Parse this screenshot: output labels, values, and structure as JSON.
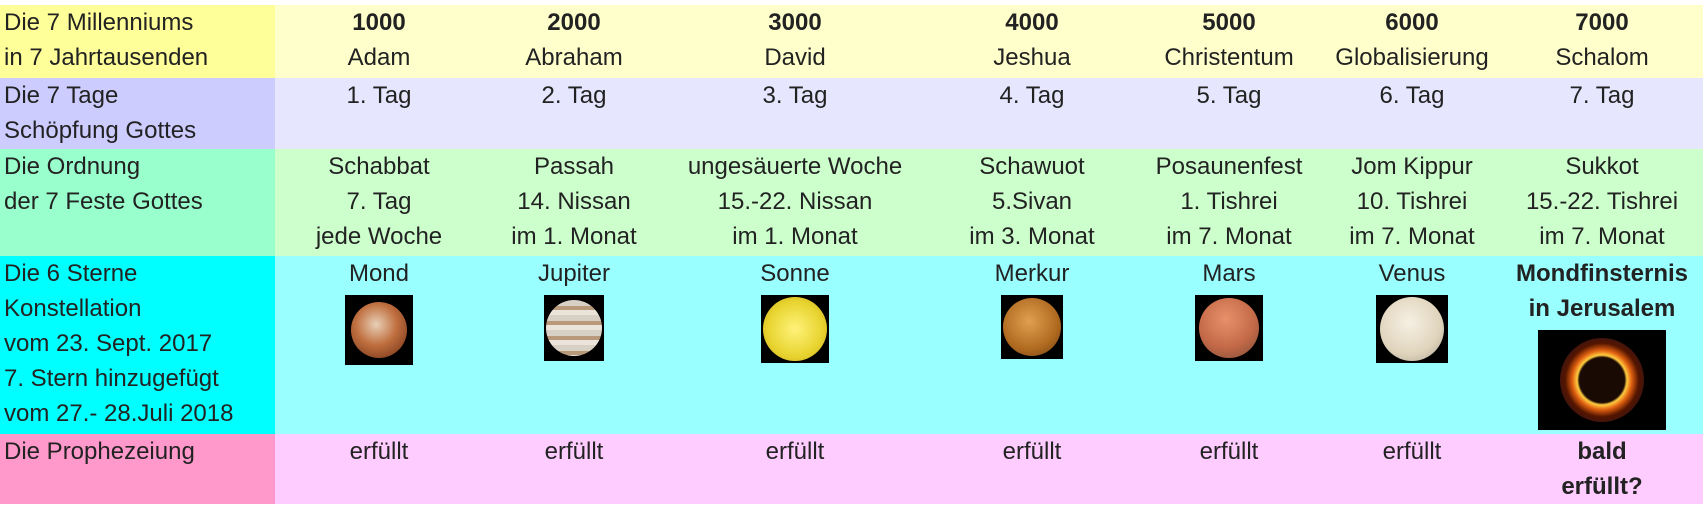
{
  "colors": {
    "row1_label": "#ffff99",
    "row1": "#ffffcc",
    "row2_label": "#ccccff",
    "row2": "#e6e6ff",
    "row3_label": "#99ffcc",
    "row3": "#ccffcc",
    "row4_label": "#00ffff",
    "row4": "#99ffff",
    "row5_label": "#ff99cc",
    "row5": "#ffccff"
  },
  "rows": [
    {
      "label": [
        "Die 7 Millenniums",
        "in 7 Jahrtausenden"
      ],
      "cells": [
        [
          "1000",
          "Adam"
        ],
        [
          "2000",
          "Abraham"
        ],
        [
          "3000",
          "David"
        ],
        [
          "4000",
          "Jeshua"
        ],
        [
          "5000",
          "Christentum"
        ],
        [
          "6000",
          "Globalisierung"
        ],
        [
          "7000",
          "Schalom"
        ]
      ]
    },
    {
      "label": [
        "Die 7 Tage",
        "Schöpfung Gottes"
      ],
      "cells": [
        "1. Tag",
        "2. Tag",
        "3. Tag",
        "4. Tag",
        "5. Tag",
        "6. Tag",
        "7. Tag"
      ]
    },
    {
      "label": [
        "Die Ordnung",
        "der 7 Feste Gottes"
      ],
      "cells": [
        [
          "Schabbat",
          "7. Tag",
          "jede Woche"
        ],
        [
          "Passah",
          "14. Nissan",
          "im 1. Monat"
        ],
        [
          "ungesäuerte Woche",
          "15.-22. Nissan",
          "im 1. Monat"
        ],
        [
          "Schawuot",
          "5.Sivan",
          "im 3. Monat"
        ],
        [
          "Posaunenfest",
          "1. Tishrei",
          "im 7. Monat"
        ],
        [
          "Jom Kippur",
          "10. Tishrei",
          "im 7. Monat"
        ],
        [
          "Sukkot",
          "15.-22. Tishrei",
          "im 7. Monat"
        ]
      ]
    },
    {
      "label": [
        "Die 6 Sterne",
        "Konstellation",
        "vom 23. Sept. 2017",
        "7. Stern hinzugefügt",
        "vom 27.- 28.Juli 2018"
      ],
      "cells": [
        {
          "name": "Mond",
          "icon": "moon-image"
        },
        {
          "name": "Jupiter",
          "icon": "jupiter-image"
        },
        {
          "name": "Sonne",
          "icon": "sun-image"
        },
        {
          "name": "Merkur",
          "icon": "mercury-image"
        },
        {
          "name": "Mars",
          "icon": "mars-image"
        },
        {
          "name": "Venus",
          "icon": "venus-image"
        },
        {
          "name": [
            "Mondfinsternis",
            "in Jerusalem"
          ],
          "icon": "eclipse-image"
        }
      ]
    },
    {
      "label": [
        "Die Prophezeiung"
      ],
      "cells": [
        "erfüllt",
        "erfüllt",
        "erfüllt",
        "erfüllt",
        "erfüllt",
        "erfüllt",
        [
          "bald",
          "erfüllt?"
        ]
      ]
    }
  ]
}
